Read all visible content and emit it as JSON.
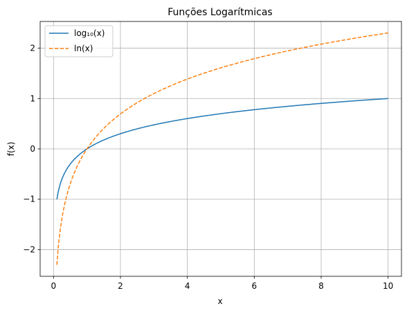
{
  "chart_data": {
    "type": "line",
    "title": "Funções Logarítmicas",
    "xlabel": "x",
    "ylabel": "f(x)",
    "xlim": [
      -0.4,
      10.4
    ],
    "ylim": [
      -2.53,
      2.53
    ],
    "xticks": [
      0,
      2,
      4,
      6,
      8,
      10
    ],
    "yticks": [
      -2,
      -1,
      0,
      1,
      2
    ],
    "xtick_labels": [
      "0",
      "2",
      "4",
      "6",
      "8",
      "10"
    ],
    "ytick_labels": [
      "−2",
      "−1",
      "0",
      "1",
      "2"
    ],
    "grid": true,
    "legend_position": "top-left",
    "x_domain": [
      0.1,
      10
    ],
    "series": [
      {
        "name": "log₁₀(x)",
        "function": "log10",
        "color": "#1f77b4",
        "line_style": "solid",
        "x": [
          0.1,
          0.2,
          0.3,
          0.5,
          0.75,
          1,
          1.5,
          2,
          3,
          4,
          5,
          6,
          7,
          8,
          9,
          10
        ],
        "values": [
          -1.0,
          -0.699,
          -0.523,
          -0.301,
          -0.125,
          0.0,
          0.176,
          0.301,
          0.477,
          0.602,
          0.699,
          0.778,
          0.845,
          0.903,
          0.954,
          1.0
        ]
      },
      {
        "name": "ln(x)",
        "function": "ln",
        "color": "#ff7f0e",
        "line_style": "dashed",
        "x": [
          0.1,
          0.2,
          0.3,
          0.5,
          0.75,
          1,
          1.5,
          2,
          3,
          4,
          5,
          6,
          7,
          8,
          9,
          10
        ],
        "values": [
          -2.303,
          -1.609,
          -1.204,
          -0.693,
          -0.288,
          0.0,
          0.405,
          0.693,
          1.099,
          1.386,
          1.609,
          1.792,
          1.946,
          2.079,
          2.197,
          2.303
        ]
      }
    ]
  }
}
